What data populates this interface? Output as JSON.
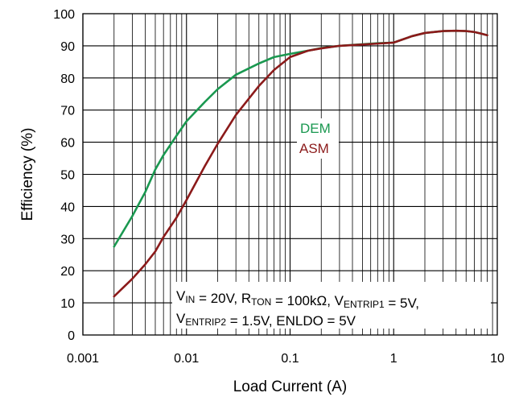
{
  "chart_data": {
    "type": "line",
    "xscale": "log",
    "xlim": [
      0.001,
      10
    ],
    "ylim": [
      0,
      100
    ],
    "xlabel": "Load Current (A)",
    "ylabel": "Efficiency (%)",
    "x_ticks": [
      "0.001",
      "0.01",
      "0.1",
      "1",
      "10"
    ],
    "y_ticks": [
      "0",
      "10",
      "20",
      "30",
      "40",
      "50",
      "60",
      "70",
      "80",
      "90",
      "100"
    ],
    "grid": true,
    "series": [
      {
        "name": "DEM",
        "color": "#1a9850",
        "x": [
          0.002,
          0.003,
          0.004,
          0.005,
          0.006,
          0.008,
          0.01,
          0.015,
          0.02,
          0.03,
          0.05,
          0.07,
          0.1,
          0.15,
          0.2,
          0.3,
          0.5,
          0.7,
          1,
          1.5,
          2,
          3,
          4,
          5,
          6,
          7,
          8
        ],
        "y": [
          27.5,
          37,
          44.5,
          51.5,
          56,
          62,
          66.5,
          72.5,
          76.5,
          81,
          84.5,
          86.5,
          87.5,
          88.5,
          89.3,
          90,
          90.5,
          90.8,
          91,
          93,
          94,
          94.6,
          94.7,
          94.6,
          94.3,
          93.8,
          93.3
        ]
      },
      {
        "name": "ASM",
        "color": "#8b1a1a",
        "x": [
          0.002,
          0.003,
          0.004,
          0.005,
          0.006,
          0.008,
          0.01,
          0.015,
          0.02,
          0.03,
          0.05,
          0.07,
          0.1,
          0.15,
          0.2,
          0.3,
          0.5,
          0.7,
          1,
          1.5,
          2,
          3,
          4,
          5,
          6,
          7,
          8
        ],
        "y": [
          12,
          17.5,
          22,
          26,
          30.5,
          36.5,
          42,
          52.5,
          59.5,
          68.5,
          77.5,
          82.5,
          86.5,
          88.5,
          89.2,
          90,
          90.4,
          90.7,
          91,
          93,
          94,
          94.6,
          94.7,
          94.6,
          94.3,
          93.8,
          93.3
        ]
      }
    ],
    "annotation": {
      "line1": [
        {
          "t": "V",
          "sub": false
        },
        {
          "t": "IN",
          "sub": true
        },
        {
          "t": " = 20V, R",
          "sub": false
        },
        {
          "t": "TON",
          "sub": true
        },
        {
          "t": " = 100kΩ, V",
          "sub": false
        },
        {
          "t": "ENTRIP1",
          "sub": true
        },
        {
          "t": " = 5V,",
          "sub": false
        }
      ],
      "line2": [
        {
          "t": "V",
          "sub": false
        },
        {
          "t": "ENTRIP2",
          "sub": true
        },
        {
          "t": " = 1.5V, ENLDO = 5V",
          "sub": false
        }
      ]
    }
  }
}
